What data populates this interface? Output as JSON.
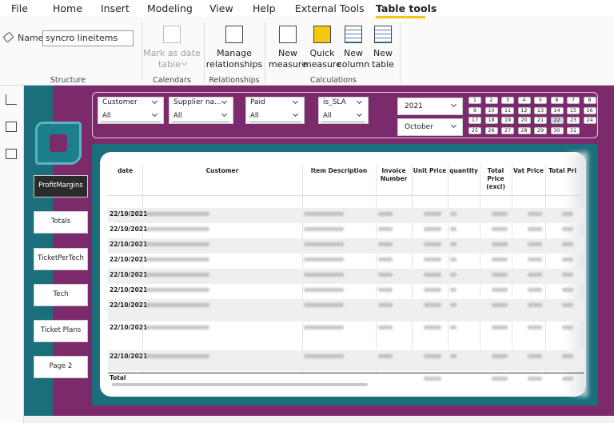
{
  "menu": {
    "tabs": [
      "File",
      "Home",
      "Insert",
      "Modeling",
      "View",
      "Help",
      "External Tools",
      "Table tools"
    ]
  },
  "ribbon": {
    "name_label": "Name",
    "name_value": "syncro lineitems",
    "buttons": [
      {
        "lines": [
          "Mark as date",
          "table"
        ]
      },
      {
        "lines": [
          "Manage",
          "relationships"
        ]
      },
      {
        "lines": [
          "New",
          "measure"
        ]
      },
      {
        "lines": [
          "Quick",
          "measure"
        ]
      },
      {
        "lines": [
          "New",
          "column"
        ]
      },
      {
        "lines": [
          "New",
          "table"
        ]
      }
    ],
    "groups": [
      "Structure",
      "Calendars",
      "Relationships",
      "Calculations"
    ]
  },
  "nav": [
    "ProfitMargins",
    "Totals",
    "TicketPerTech",
    "Tech",
    "Ticket Plans",
    "Page 2"
  ],
  "slicers": [
    {
      "title": "Customer",
      "value": "All"
    },
    {
      "title": "Supplier na...",
      "value": "All"
    },
    {
      "title": "Paid",
      "value": "All"
    },
    {
      "title": "is_SLA",
      "value": "All"
    }
  ],
  "year": "2021",
  "month": "October",
  "days": [
    1,
    2,
    3,
    4,
    5,
    6,
    7,
    8,
    9,
    10,
    11,
    12,
    13,
    14,
    15,
    16,
    17,
    18,
    19,
    20,
    21,
    22,
    23,
    24,
    25,
    26,
    27,
    28,
    29,
    30,
    31
  ],
  "table": {
    "headers": [
      "date",
      "Customer",
      "Item Description",
      "Invoice Number",
      "Unit Price",
      "quantity",
      "Total Price (excl)",
      "Vat Price",
      "Total Pri"
    ],
    "dates": [
      "22/10/2021",
      "22/10/2021",
      "22/10/2021",
      "22/10/2021",
      "22/10/2021",
      "22/10/2021",
      "22/10/2021",
      "22/10/2021",
      "22/10/2021"
    ],
    "total": "Total"
  }
}
